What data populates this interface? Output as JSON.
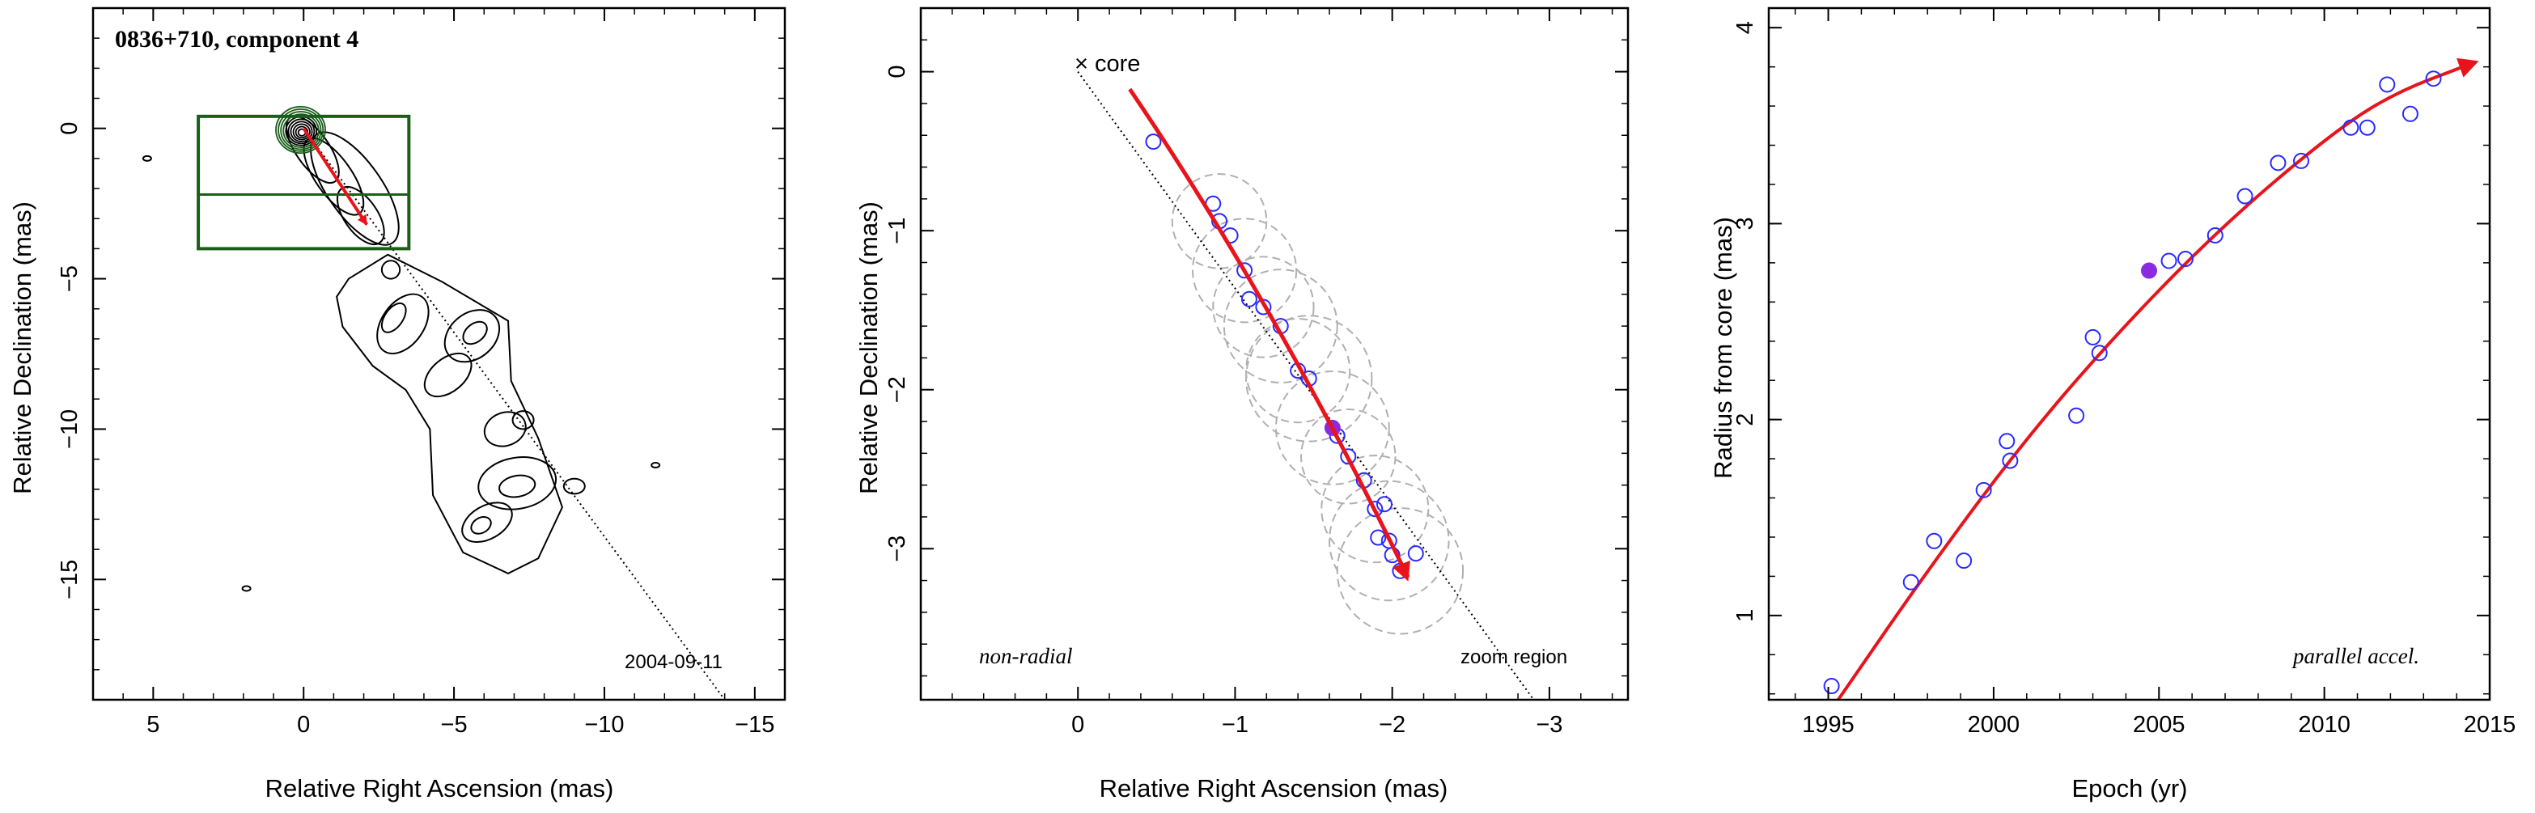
{
  "chart_data": [
    {
      "type": "contour",
      "title": "0836+710, component 4",
      "date_label": "2004-09-11",
      "xlabel": "Relative Right Ascension (mas)",
      "ylabel": "Relative Declination (mas)",
      "xlim": [
        7,
        -16
      ],
      "ylim": [
        -19,
        4
      ],
      "xticks": [
        5,
        0,
        -5,
        -10,
        -15
      ],
      "yticks": [
        0,
        -5,
        -10,
        -15
      ],
      "zoom_box": {
        "x": [
          3.5,
          -3.5
        ],
        "y": [
          0.4,
          -4
        ]
      },
      "zoom_box_mid_y": -2.2,
      "jet_axis_line": {
        "x": [
          0,
          -14
        ],
        "y": [
          0,
          -19
        ]
      },
      "motion_arrow": {
        "from": [
          0,
          0
        ],
        "to": [
          -2.1,
          -3.2
        ]
      },
      "colors": {
        "box": "#1a5e1a",
        "arrow": "#e8141c",
        "core_contours": "#1a5e1a",
        "contours": "#000000"
      }
    },
    {
      "type": "scatter",
      "label": "non-radial",
      "region_label": "zoom region",
      "core_label": "× core",
      "xlabel": "Relative Right Ascension (mas)",
      "ylabel": "Relative Declination (mas)",
      "xlim": [
        1,
        -3.5
      ],
      "ylim": [
        -3.95,
        0.4
      ],
      "xticks": [
        0,
        -1,
        -2,
        -3
      ],
      "xtick_labels": [
        "0",
        "−1",
        "−2",
        "−3"
      ],
      "yticks": [
        0,
        -1,
        -2,
        -3
      ],
      "ytick_labels": [
        "0",
        "−1",
        "−2",
        "−3"
      ],
      "points": [
        {
          "x": -0.48,
          "y": -0.44
        },
        {
          "x": -0.86,
          "y": -0.83
        },
        {
          "x": -0.9,
          "y": -0.94
        },
        {
          "x": -0.97,
          "y": -1.03
        },
        {
          "x": -1.06,
          "y": -1.25
        },
        {
          "x": -1.09,
          "y": -1.43
        },
        {
          "x": -1.18,
          "y": -1.48
        },
        {
          "x": -1.29,
          "y": -1.6
        },
        {
          "x": -1.4,
          "y": -1.88
        },
        {
          "x": -1.47,
          "y": -1.93
        },
        {
          "x": -1.65,
          "y": -2.29
        },
        {
          "x": -1.72,
          "y": -2.42
        },
        {
          "x": -1.82,
          "y": -2.57
        },
        {
          "x": -1.89,
          "y": -2.75
        },
        {
          "x": -1.95,
          "y": -2.72
        },
        {
          "x": -1.91,
          "y": -2.93
        },
        {
          "x": -1.98,
          "y": -2.95
        },
        {
          "x": -2.0,
          "y": -3.04
        },
        {
          "x": -2.15,
          "y": -3.03
        },
        {
          "x": -2.05,
          "y": -3.14
        }
      ],
      "highlight_point": {
        "x": -1.62,
        "y": -2.24
      },
      "uncertainty_circles": [
        {
          "x": -0.9,
          "y": -0.94,
          "r": 0.3
        },
        {
          "x": -1.06,
          "y": -1.25,
          "r": 0.33
        },
        {
          "x": -1.18,
          "y": -1.48,
          "r": 0.32
        },
        {
          "x": -1.29,
          "y": -1.6,
          "r": 0.36
        },
        {
          "x": -1.4,
          "y": -1.88,
          "r": 0.33
        },
        {
          "x": -1.47,
          "y": -1.93,
          "r": 0.4
        },
        {
          "x": -1.62,
          "y": -2.24,
          "r": 0.36
        },
        {
          "x": -1.72,
          "y": -2.42,
          "r": 0.3
        },
        {
          "x": -1.89,
          "y": -2.75,
          "r": 0.34
        },
        {
          "x": -1.98,
          "y": -2.95,
          "r": 0.38
        },
        {
          "x": -2.05,
          "y": -3.14,
          "r": 0.4
        }
      ],
      "jet_axis_line": {
        "x": [
          0,
          -2.9
        ],
        "y": [
          0,
          -3.95
        ]
      },
      "motion_arrow": {
        "from": [
          -0.33,
          -0.11
        ],
        "to": [
          -2.1,
          -3.2
        ]
      },
      "colors": {
        "points": "#2a2aff",
        "highlight": "#8a2be2",
        "arrow": "#e8141c",
        "circles": "#b0b0b0"
      }
    },
    {
      "type": "scatter",
      "label": "parallel accel.",
      "xlabel": "Epoch (yr)",
      "ylabel": "Radius from core (mas)",
      "xlim": [
        1993.2,
        2015
      ],
      "ylim": [
        0.57,
        4.1
      ],
      "xticks": [
        1995,
        2000,
        2005,
        2010,
        2015
      ],
      "xtick_labels": [
        "1995",
        "2000",
        "2005",
        "2010",
        "2015"
      ],
      "yticks": [
        1,
        2,
        3,
        4
      ],
      "ytick_labels": [
        "1",
        "2",
        "3",
        "4"
      ],
      "points": [
        {
          "x": 1995.1,
          "y": 0.64
        },
        {
          "x": 1997.5,
          "y": 1.17
        },
        {
          "x": 1998.2,
          "y": 1.38
        },
        {
          "x": 1999.1,
          "y": 1.28
        },
        {
          "x": 1999.7,
          "y": 1.64
        },
        {
          "x": 2000.4,
          "y": 1.89
        },
        {
          "x": 2000.5,
          "y": 1.79
        },
        {
          "x": 2002.5,
          "y": 2.02
        },
        {
          "x": 2003.0,
          "y": 2.42
        },
        {
          "x": 2003.2,
          "y": 2.34
        },
        {
          "x": 2005.3,
          "y": 2.81
        },
        {
          "x": 2005.8,
          "y": 2.82
        },
        {
          "x": 2006.7,
          "y": 2.94
        },
        {
          "x": 2007.6,
          "y": 3.14
        },
        {
          "x": 2008.6,
          "y": 3.31
        },
        {
          "x": 2009.3,
          "y": 3.32
        },
        {
          "x": 2010.8,
          "y": 3.49
        },
        {
          "x": 2011.3,
          "y": 3.49
        },
        {
          "x": 2011.9,
          "y": 3.71
        },
        {
          "x": 2012.6,
          "y": 3.56
        },
        {
          "x": 2013.3,
          "y": 3.74
        }
      ],
      "highlight_point": {
        "x": 2004.7,
        "y": 2.76
      },
      "fit_curve": [
        {
          "x": 1995.3,
          "y": 0.57
        },
        {
          "x": 1998,
          "y": 1.23
        },
        {
          "x": 2001,
          "y": 1.91
        },
        {
          "x": 2004,
          "y": 2.49
        },
        {
          "x": 2007,
          "y": 3.0
        },
        {
          "x": 2010,
          "y": 3.43
        },
        {
          "x": 2012,
          "y": 3.66
        },
        {
          "x": 2014.5,
          "y": 3.82
        }
      ],
      "colors": {
        "points": "#2a2aff",
        "highlight": "#8a2be2",
        "fit": "#e8141c"
      }
    }
  ]
}
